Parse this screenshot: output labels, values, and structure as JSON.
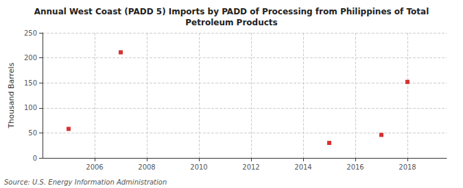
{
  "chart_data": {
    "type": "scatter",
    "title": "Annual West Coast (PADD 5) Imports by PADD of Processing from Philippines of Total\nPetroleum Products",
    "ylabel": "Thousand Barrels",
    "source": "Source: U.S. Energy Information Administration",
    "x": [
      2005,
      2007,
      2015,
      2017,
      2018
    ],
    "values": [
      58,
      211,
      30,
      46,
      152
    ],
    "color": "#cc0000",
    "marker": "square",
    "xlim": [
      2004.0,
      2019.5
    ],
    "xticks": [
      2006,
      2008,
      2010,
      2012,
      2014,
      2016,
      2018
    ],
    "ylim": [
      0,
      250
    ],
    "yticks": [
      0,
      50,
      100,
      150,
      200,
      250
    ],
    "grid": true
  }
}
